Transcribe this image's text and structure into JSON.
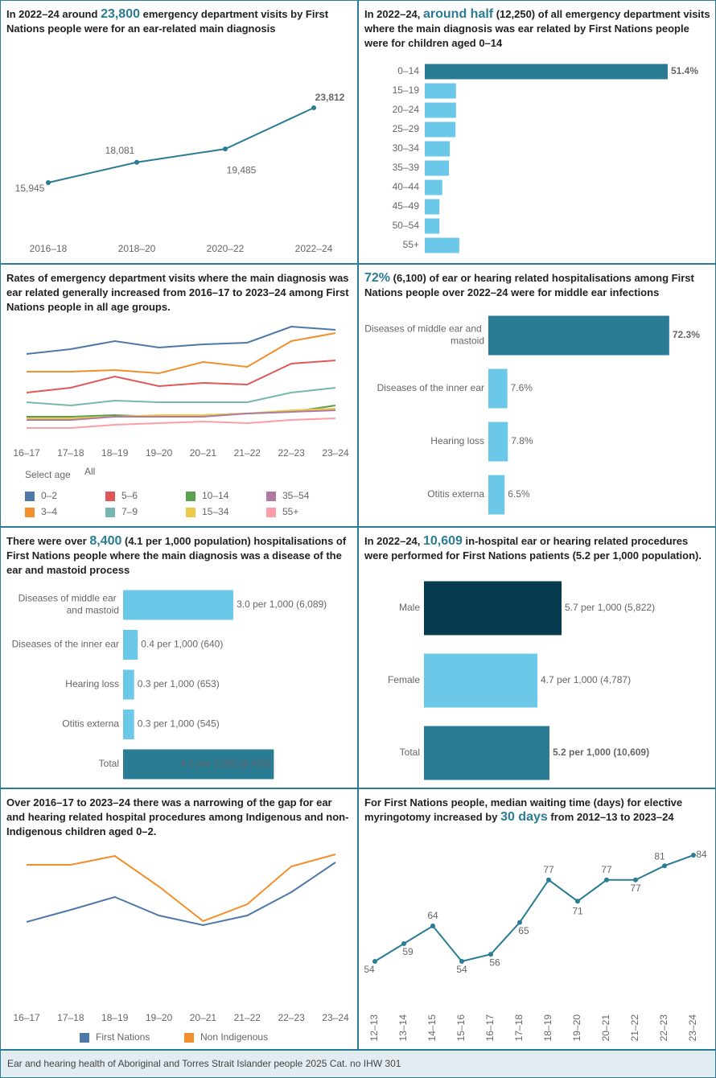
{
  "chart_data": [
    {
      "type": "line",
      "title": [
        {
          "text": "In 2022–24 around "
        },
        {
          "text": "23,800",
          "emphasis": true
        },
        {
          "text": " emergency department visits by First Nations people were for an ear-related main diagnosis"
        }
      ],
      "categories": [
        "2016–18",
        "2018–20",
        "2020–22",
        "2022–24"
      ],
      "values": [
        15945,
        18081,
        19485,
        23812
      ],
      "value_labels": [
        "15,945",
        "18,081",
        "19,485",
        "23,812"
      ],
      "color": "#2a7b94",
      "markers": true
    },
    {
      "type": "bar",
      "horizontal": true,
      "title": [
        {
          "text": "In 2022–24, "
        },
        {
          "text": "around half",
          "emphasis": true
        },
        {
          "text": " (12,250) of all emergency department visits where the main diagnosis was ear related by First Nations people were for children aged 0–14"
        }
      ],
      "categories": [
        "0–14",
        "15–19",
        "20–24",
        "25–29",
        "30–34",
        "35–39",
        "40–44",
        "45–49",
        "50–54",
        "55+"
      ],
      "values": [
        51.4,
        6.6,
        6.6,
        6.5,
        5.3,
        5.1,
        3.7,
        3.1,
        3.1,
        7.3
      ],
      "value_labels": [
        "51.4%",
        null,
        null,
        null,
        null,
        null,
        null,
        null,
        null,
        null
      ],
      "colors": [
        "#2a7b94",
        "#6cc8e8",
        "#6cc8e8",
        "#6cc8e8",
        "#6cc8e8",
        "#6cc8e8",
        "#6cc8e8",
        "#6cc8e8",
        "#6cc8e8",
        "#6cc8e8"
      ]
    },
    {
      "type": "line",
      "title": [
        {
          "text": "Rates of emergency department visits where the main diagnosis was ear related generally increased from 2016–17 to 2023–24 among First Nations people in all age groups."
        }
      ],
      "categories": [
        "16–17",
        "17–18",
        "18–19",
        "19–20",
        "20–21",
        "21–22",
        "22–23",
        "23–24"
      ],
      "markers": false,
      "legend_title": "Select age",
      "filter_value": "All",
      "series": [
        {
          "name": "0–2",
          "color": "#4e79a7",
          "values": [
            53,
            56,
            61,
            57,
            59,
            60,
            70,
            68
          ]
        },
        {
          "name": "3–4",
          "color": "#f28e2b",
          "values": [
            42,
            42,
            43,
            41,
            48,
            45,
            61,
            66
          ]
        },
        {
          "name": "5–6",
          "color": "#e15759",
          "values": [
            29,
            32,
            39,
            33,
            35,
            34,
            47,
            49
          ]
        },
        {
          "name": "7–9",
          "color": "#76b7b2",
          "values": [
            23,
            21,
            24,
            23,
            23,
            23,
            29,
            32
          ]
        },
        {
          "name": "10–14",
          "color": "#59a14f",
          "values": [
            14,
            14,
            15,
            14,
            15,
            16,
            17,
            21
          ]
        },
        {
          "name": "15–34",
          "color": "#edc948",
          "values": [
            13,
            13,
            14,
            15,
            15,
            16,
            18,
            19
          ]
        },
        {
          "name": "35–54",
          "color": "#b07aa1",
          "values": [
            12,
            12,
            14,
            14,
            14,
            16,
            17,
            18
          ]
        },
        {
          "name": "55+",
          "color": "#ff9da7",
          "values": [
            7,
            7,
            9,
            10,
            11,
            10,
            12,
            13
          ]
        }
      ]
    },
    {
      "type": "bar",
      "horizontal": true,
      "title": [
        {
          "text": "72%",
          "emphasis": true
        },
        {
          "text": " (6,100) of ear or hearing related hospitalisations among First Nations people over 2022–24 were for middle ear infections"
        }
      ],
      "categories": [
        "Diseases of middle ear and mastoid",
        "Diseases of the inner ear",
        "Hearing loss",
        "Otitis externa"
      ],
      "values": [
        72.3,
        7.6,
        7.8,
        6.5
      ],
      "value_labels": [
        "72.3%",
        "7.6%",
        "7.8%",
        "6.5%"
      ],
      "colors": [
        "#2a7b94",
        "#6cc8e8",
        "#6cc8e8",
        "#6cc8e8"
      ]
    },
    {
      "type": "bar",
      "horizontal": true,
      "title": [
        {
          "text": "There were over "
        },
        {
          "text": "8,400",
          "emphasis": true
        },
        {
          "text": " (4.1 per 1,000 population) hospitalisations of First Nations people where the main diagnosis was a disease of the ear and mastoid process"
        }
      ],
      "categories": [
        "Diseases of middle ear and mastoid",
        "Diseases of the inner ear",
        "Hearing loss",
        "Otitis externa",
        "Total"
      ],
      "values": [
        3.0,
        0.4,
        0.3,
        0.3,
        4.1
      ],
      "value_labels": [
        "3.0 per 1,000 (6,089)",
        "0.4 per 1,000 (640)",
        "0.3 per 1,000 (653)",
        "0.3 per 1,000 (545)",
        "4.1 per 1,000 (8,424)"
      ],
      "colors": [
        "#6cc8e8",
        "#6cc8e8",
        "#6cc8e8",
        "#6cc8e8",
        "#2a7b94"
      ]
    },
    {
      "type": "bar",
      "horizontal": true,
      "title": [
        {
          "text": "In 2022–24, "
        },
        {
          "text": "10,609",
          "emphasis": true
        },
        {
          "text": " in-hospital ear or hearing related procedures were performed for First Nations patients (5.2 per 1,000 population)."
        }
      ],
      "categories": [
        "Male",
        "Female",
        "Total"
      ],
      "values": [
        5.7,
        4.7,
        5.2
      ],
      "value_labels": [
        "5.7 per 1,000 (5,822)",
        "4.7 per 1,000 (4,787)",
        "5.2 per 1,000 (10,609)"
      ],
      "colors": [
        "#053a4f",
        "#6cc8e8",
        "#2a7b94"
      ]
    },
    {
      "type": "line",
      "title": [
        {
          "text": "Over 2016–17 to 2023–24 there was a narrowing of the gap for ear and hearing related hospital procedures among Indigenous and non-Indigenous children aged 0–2."
        }
      ],
      "categories": [
        "16–17",
        "17–18",
        "18–19",
        "19–20",
        "20–21",
        "21–22",
        "22–23",
        "23–24"
      ],
      "markers": false,
      "series": [
        {
          "name": "First Nations",
          "color": "#4e79a7",
          "values": [
            27.5,
            35,
            43,
            31.5,
            25.5,
            31.5,
            46,
            64.5
          ]
        },
        {
          "name": "Non Indigenous",
          "color": "#f28e2b",
          "values": [
            63,
            63,
            68.5,
            49.5,
            28,
            38.5,
            62,
            69.5
          ]
        }
      ]
    },
    {
      "type": "line",
      "title": [
        {
          "text": "For First Nations people, median waiting time (days) for elective myringotomy increased by "
        },
        {
          "text": "30 days",
          "emphasis": true
        },
        {
          "text": " from 2012–13 to 2023–24"
        }
      ],
      "categories": [
        "12–13",
        "13–14",
        "14–15",
        "15–16",
        "16–17",
        "17–18",
        "18–19",
        "19–20",
        "20–21",
        "21–22",
        "22–23",
        "23–24"
      ],
      "values": [
        54,
        59,
        64,
        54,
        56,
        65,
        77,
        71,
        77,
        77,
        81,
        84
      ],
      "color": "#2a7b94",
      "markers": true
    }
  ],
  "footer": "Ear and hearing health of Aboriginal and Torres Strait Islander people 2025 Cat. no IHW 301"
}
